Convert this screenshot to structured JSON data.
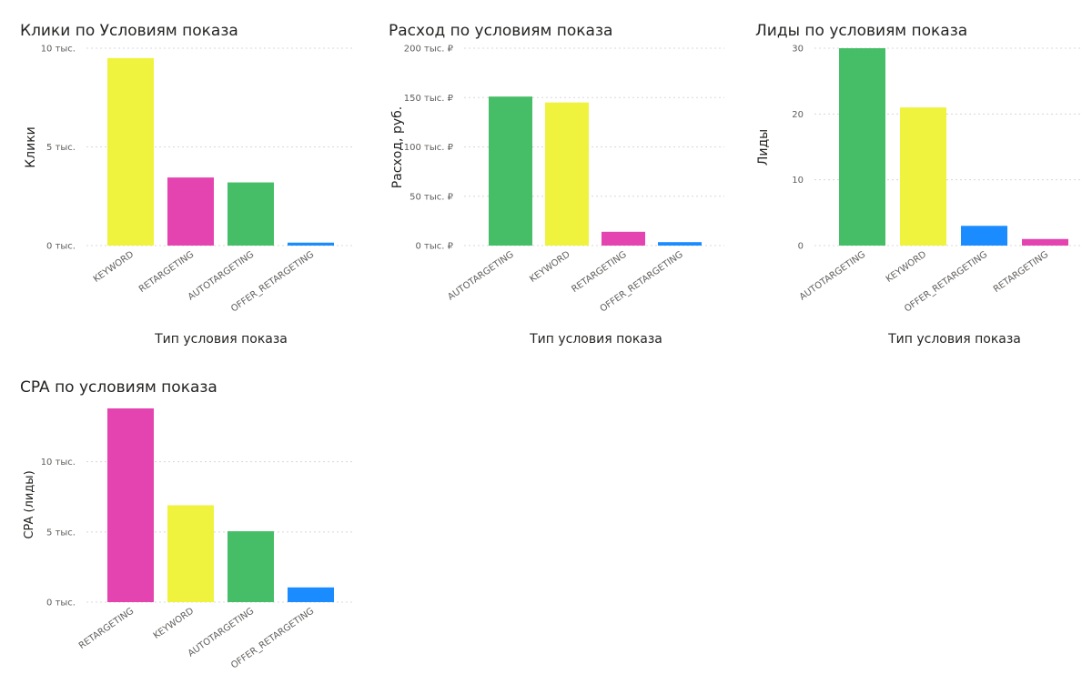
{
  "colors": {
    "KEYWORD": "#EFF33D",
    "RETARGETING": "#E444B0",
    "AUTOTARGETING": "#46BE68",
    "OFFER_RETARGETING": "#1A8CFF"
  },
  "chart_data": [
    {
      "type": "bar",
      "title": "Клики по Условиям показа",
      "ylabel": "Клики",
      "xlabel": "Тип условия показа",
      "categories": [
        "KEYWORD",
        "RETARGETING",
        "AUTOTARGETING",
        "OFFER_RETARGETING"
      ],
      "values": [
        9500,
        3450,
        3200,
        150
      ],
      "ylim": [
        0,
        10000
      ],
      "ticks": [
        {
          "value": 0,
          "label": "0 тыс."
        },
        {
          "value": 5000,
          "label": "5 тыс."
        },
        {
          "value": 10000,
          "label": "10 тыс."
        }
      ],
      "grid": true
    },
    {
      "type": "bar",
      "title": "Расход по условиям показа",
      "ylabel": "Расход, руб.",
      "xlabel": "Тип условия показа",
      "categories": [
        "AUTOTARGETING",
        "KEYWORD",
        "RETARGETING",
        "OFFER_RETARGETING"
      ],
      "values": [
        151000,
        145000,
        14000,
        3500
      ],
      "ylim": [
        0,
        200000
      ],
      "ticks": [
        {
          "value": 0,
          "label": "0 тыс. ₽"
        },
        {
          "value": 50000,
          "label": "50 тыс. ₽"
        },
        {
          "value": 100000,
          "label": "100 тыс. ₽"
        },
        {
          "value": 150000,
          "label": "150 тыс. ₽"
        },
        {
          "value": 200000,
          "label": "200 тыс. ₽"
        }
      ],
      "grid": true
    },
    {
      "type": "bar",
      "title": "Лиды по условиям показа",
      "ylabel": "Лиды",
      "xlabel": "Тип условия показа",
      "categories": [
        "AUTOTARGETING",
        "KEYWORD",
        "OFFER_RETARGETING",
        "RETARGETING"
      ],
      "values": [
        30,
        21,
        3,
        1
      ],
      "ylim": [
        0,
        30
      ],
      "ticks": [
        {
          "value": 0,
          "label": "0"
        },
        {
          "value": 10,
          "label": "10"
        },
        {
          "value": 20,
          "label": "20"
        },
        {
          "value": 30,
          "label": "30"
        }
      ],
      "grid": true
    },
    {
      "type": "bar",
      "title": "CPA по условиям показа",
      "ylabel": "CPA (лиды)",
      "xlabel": "",
      "categories": [
        "RETARGETING",
        "KEYWORD",
        "AUTOTARGETING",
        "OFFER_RETARGETING"
      ],
      "values": [
        13800,
        6900,
        5050,
        1050
      ],
      "ylim": [
        0,
        13800
      ],
      "ticks": [
        {
          "value": 0,
          "label": "0 тыс."
        },
        {
          "value": 5000,
          "label": "5 тыс."
        },
        {
          "value": 10000,
          "label": "10 тыс."
        }
      ],
      "grid": true
    }
  ]
}
